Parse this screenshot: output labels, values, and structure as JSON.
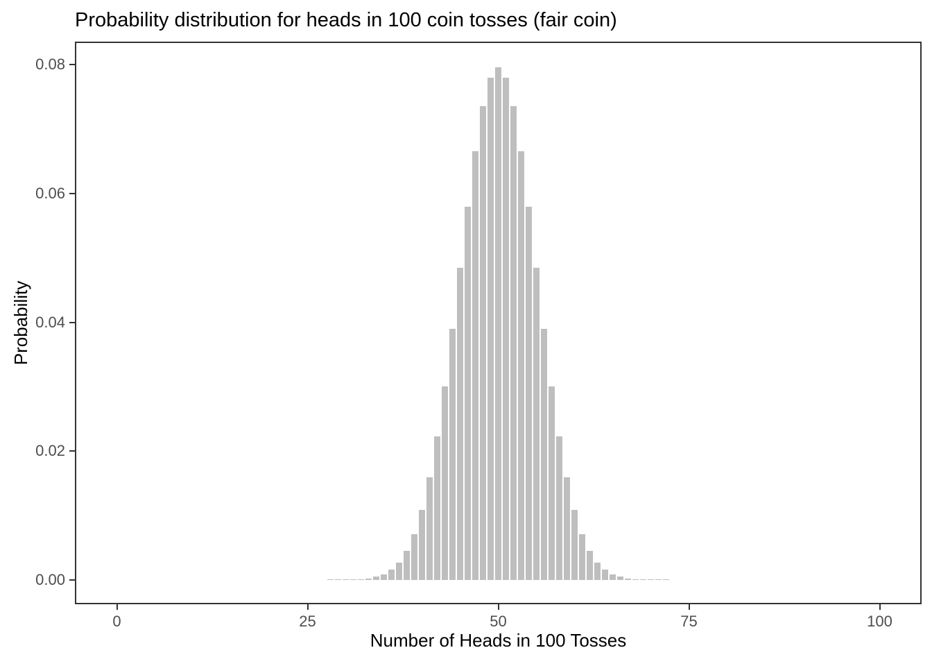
{
  "chart_data": {
    "type": "bar",
    "title": "Probability distribution for heads in 100 coin tosses (fair coin)",
    "xlabel": "Number of Heads in 100 Tosses",
    "ylabel": "Probability",
    "x": [
      25,
      26,
      27,
      28,
      29,
      30,
      31,
      32,
      33,
      34,
      35,
      36,
      37,
      38,
      39,
      40,
      41,
      42,
      43,
      44,
      45,
      46,
      47,
      48,
      49,
      50,
      51,
      52,
      53,
      54,
      55,
      56,
      57,
      58,
      59,
      60,
      61,
      62,
      63,
      64,
      65,
      66,
      67,
      68,
      69,
      70,
      71,
      72,
      73,
      74,
      75
    ],
    "values": [
      2e-07,
      6e-07,
      1.5e-06,
      3.9e-06,
      9.8e-06,
      2.32e-05,
      5.23e-05,
      0.0001128,
      0.0002324,
      0.000458,
      0.0008636,
      0.0015595,
      0.0026975,
      0.0044724,
      0.0071103,
      0.0108431,
      0.015868,
      0.0222917,
      0.0300678,
      0.0389508,
      0.0484721,
      0.0579558,
      0.0665876,
      0.073527,
      0.0780287,
      0.0795892,
      0.0780287,
      0.073527,
      0.0665876,
      0.0579558,
      0.0484721,
      0.0389508,
      0.0300678,
      0.0222917,
      0.015868,
      0.0108431,
      0.0071103,
      0.0044724,
      0.0026975,
      0.0015595,
      0.0008636,
      0.000458,
      0.0002324,
      0.0001128,
      5.23e-05,
      2.32e-05,
      9.8e-06,
      3.9e-06,
      1.5e-06,
      6e-07,
      2e-07
    ],
    "x_ticks": {
      "values": [
        0,
        25,
        50,
        75,
        100
      ],
      "labels": [
        "0",
        "25",
        "50",
        "75",
        "100"
      ]
    },
    "y_ticks": {
      "values": [
        0,
        0.02,
        0.04,
        0.06,
        0.08
      ],
      "labels": [
        "0.00",
        "0.02",
        "0.04",
        "0.06",
        "0.08"
      ]
    },
    "xlim": [
      -5.5,
      105.5
    ],
    "ylim": [
      -0.0038,
      0.0836
    ],
    "bar_width": 0.9,
    "grid": false,
    "legend_position": "none"
  },
  "colors": {
    "bar_fill": "#BEBEBE",
    "panel_border": "#333333",
    "axis_tick": "#333333",
    "tick_label": "#4D4D4D",
    "title_text": "#000000",
    "background": "#FFFFFF"
  }
}
